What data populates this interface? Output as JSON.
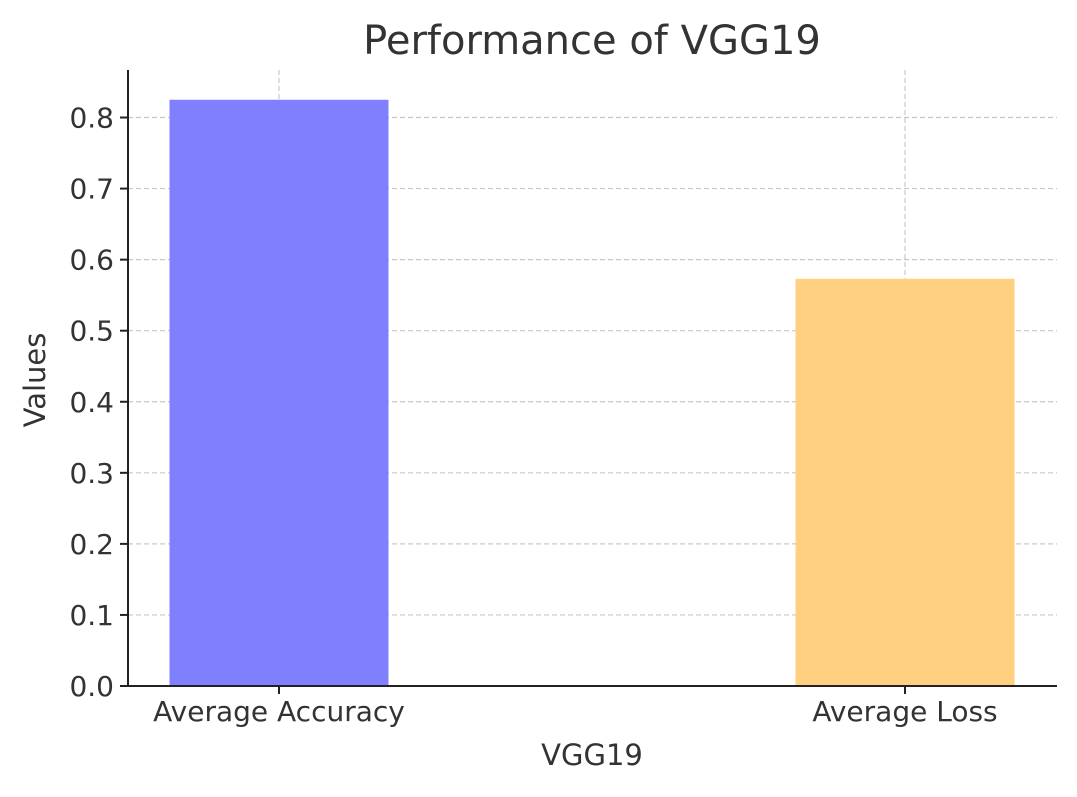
{
  "chart_data": {
    "type": "bar",
    "title": "Performance of VGG19",
    "xlabel": "VGG19",
    "ylabel": "Values",
    "categories": [
      "Average Accuracy",
      "Average Loss"
    ],
    "values": [
      0.825,
      0.573
    ],
    "colors": [
      "#8080ff",
      "#ffd080"
    ],
    "ylim": [
      0,
      0.87
    ],
    "yticks": [
      0.0,
      0.1,
      0.2,
      0.3,
      0.4,
      0.5,
      0.6,
      0.7,
      0.8
    ],
    "ytick_labels": [
      "0.0",
      "0.1",
      "0.2",
      "0.3",
      "0.4",
      "0.5",
      "0.6",
      "0.7",
      "0.8"
    ],
    "grid": true,
    "legend": "none"
  }
}
